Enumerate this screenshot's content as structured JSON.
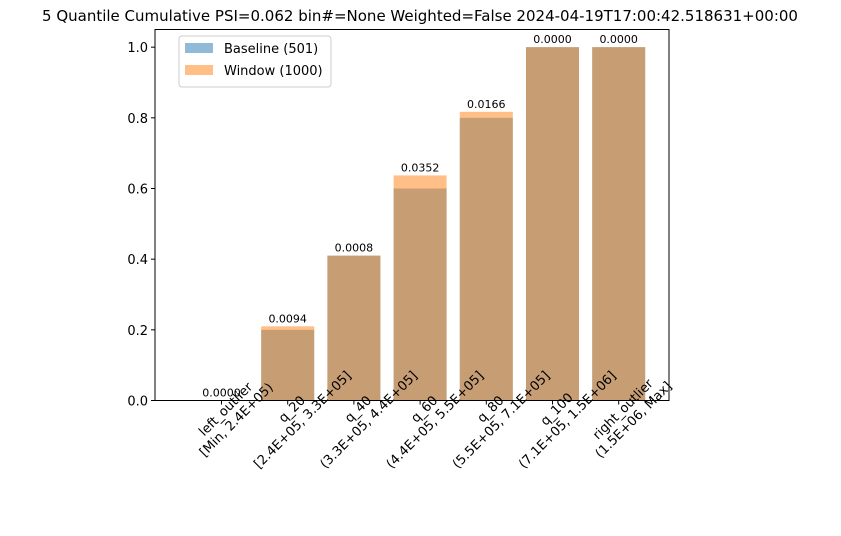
{
  "chart_data": {
    "type": "bar",
    "title": "5 Quantile Cumulative PSI=0.062 bin#=None Weighted=False 2024-04-19T17:00:42.518631+00:00",
    "xlabel": "",
    "ylabel": "",
    "ylim": [
      0,
      1.05
    ],
    "yticks": [
      "0.0",
      "0.2",
      "0.4",
      "0.6",
      "0.8",
      "1.0"
    ],
    "ytick_values": [
      0,
      0.2,
      0.4,
      0.6,
      0.8,
      1.0
    ],
    "grid": false,
    "legend_position": "top-left",
    "categories": [
      [
        "left_outlier",
        "[Min, 2.4E+05)"
      ],
      [
        "q_20",
        "[2.4E+05, 3.3E+05]"
      ],
      [
        "q_40",
        "(3.3E+05, 4.4E+05]"
      ],
      [
        "q_60",
        "(4.4E+05, 5.5E+05]"
      ],
      [
        "q_80",
        "(5.5E+05, 7.1E+05]"
      ],
      [
        "q_100",
        "(7.1E+05, 1.5E+06]"
      ],
      [
        "right_outlier",
        "(1.5E+06, Max]"
      ]
    ],
    "series": [
      {
        "name": "Baseline (501)",
        "color": "#1f77b4",
        "opacity": 0.5,
        "values": [
          0.0,
          0.2,
          0.41,
          0.6,
          0.8,
          1.0,
          1.0
        ]
      },
      {
        "name": "Window (1000)",
        "color": "#ff7f0e",
        "opacity": 0.5,
        "values": [
          0.0,
          0.21,
          0.41,
          0.637,
          0.817,
          1.0,
          1.0
        ]
      }
    ],
    "bar_labels": [
      "0.0000",
      "0.0094",
      "0.0008",
      "0.0352",
      "0.0166",
      "0.0000",
      "0.0000"
    ]
  }
}
